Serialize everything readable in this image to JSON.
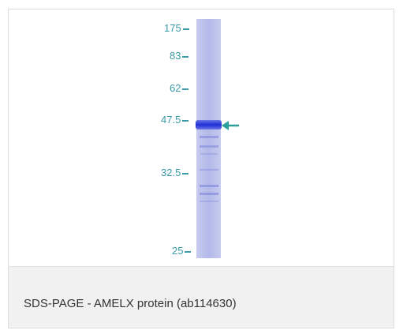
{
  "figure": {
    "markers": [
      "175",
      "83",
      "62",
      "47.5",
      "32.5",
      "25"
    ],
    "arrow_color": "#2a9f9a",
    "lane_color": "#b7bde8",
    "band_color": "#2a3ad8"
  },
  "caption": {
    "text": "SDS-PAGE - AMELX protein (ab114630)"
  }
}
